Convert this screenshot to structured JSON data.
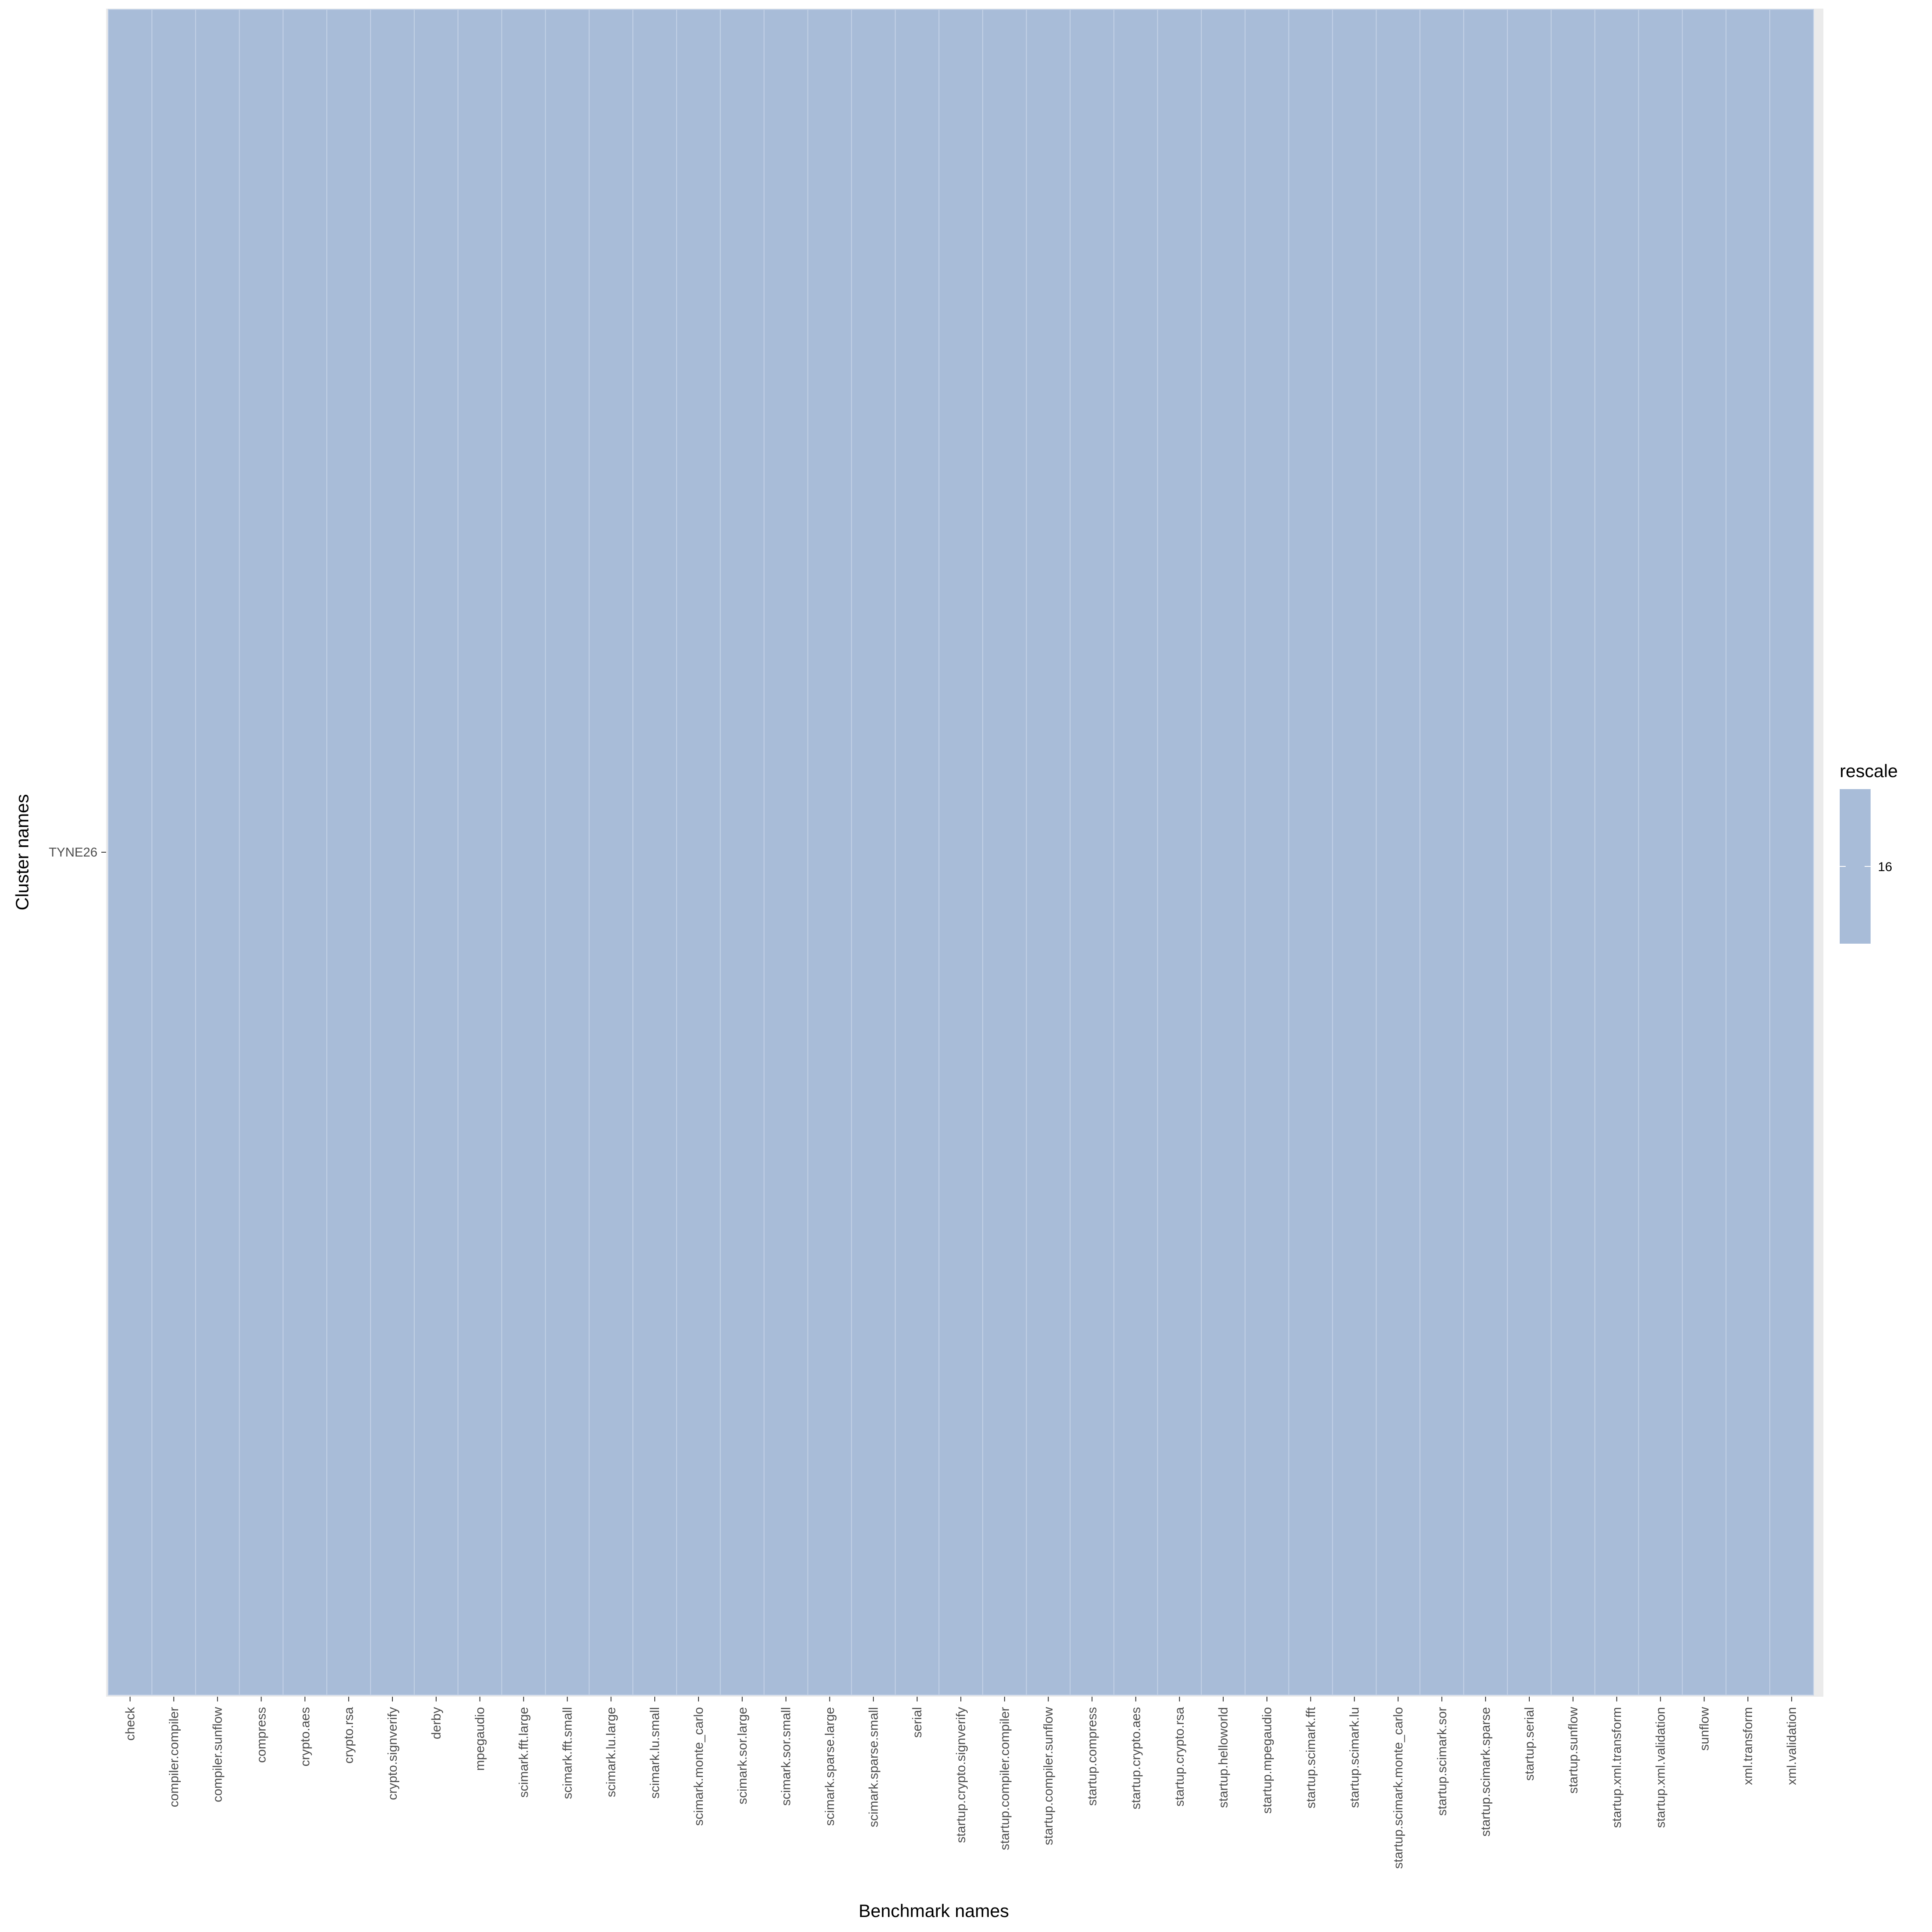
{
  "chart_data": {
    "type": "heatmap",
    "xlabel": "Benchmark names",
    "ylabel": "Cluster names",
    "x_categories": [
      "check",
      "compiler.compiler",
      "compiler.sunflow",
      "compress",
      "crypto.aes",
      "crypto.rsa",
      "crypto.signverify",
      "derby",
      "mpegaudio",
      "scimark.fft.large",
      "scimark.fft.small",
      "scimark.lu.large",
      "scimark.lu.small",
      "scimark.monte_carlo",
      "scimark.sor.large",
      "scimark.sor.small",
      "scimark.sparse.large",
      "scimark.sparse.small",
      "serial",
      "startup.crypto.signverify",
      "startup.compiler.compiler",
      "startup.compiler.sunflow",
      "startup.compress",
      "startup.crypto.aes",
      "startup.crypto.rsa",
      "startup.helloworld",
      "startup.mpegaudio",
      "startup.scimark.fft",
      "startup.scimark.lu",
      "startup.scimark.monte_carlo",
      "startup.scimark.sor",
      "startup.scimark.sparse",
      "startup.serial",
      "startup.sunflow",
      "startup.xml.transform",
      "startup.xml.validation",
      "sunflow",
      "xml.transform",
      "xml.validation"
    ],
    "y_categories": [
      "TYNE26"
    ],
    "values": [
      [
        16,
        16,
        16,
        16,
        16,
        16,
        16,
        16,
        16,
        16,
        16,
        16,
        16,
        16,
        16,
        16,
        16,
        16,
        16,
        16,
        16,
        16,
        16,
        16,
        16,
        16,
        16,
        16,
        16,
        16,
        16,
        16,
        16,
        16,
        16,
        16,
        16,
        16,
        16
      ]
    ],
    "legend": {
      "title": "rescale",
      "breaks": [
        "16"
      ],
      "position": "right"
    },
    "colors": {
      "tile_fill": "#a8bcd8",
      "tile_border": "#c3d1e6",
      "panel_background": "#ebebeb",
      "tick_color": "#333333"
    },
    "grid": false
  }
}
